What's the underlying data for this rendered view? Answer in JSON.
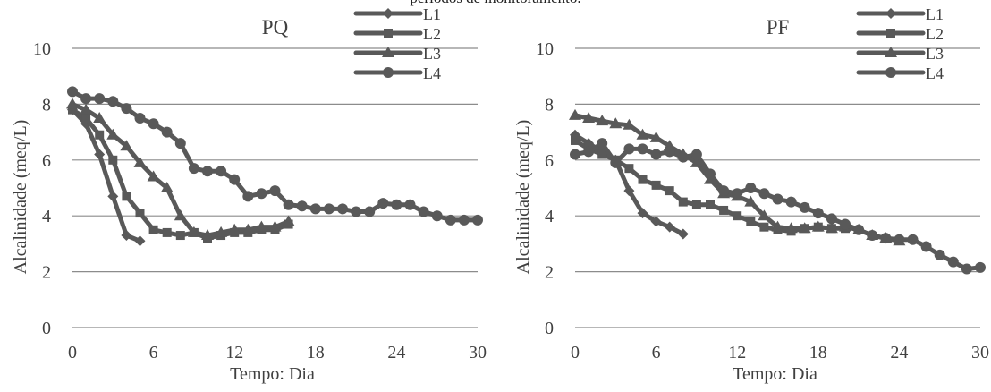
{
  "caption": "períodos de monitoramento.",
  "chart_data": [
    {
      "type": "line",
      "title": "PQ",
      "xlabel": "Tempo: Dia",
      "ylabel": "Alcalinidade (meq/L)",
      "xlim": [
        0,
        30
      ],
      "ylim": [
        0,
        10
      ],
      "xticks": [
        0,
        6,
        12,
        18,
        24,
        30
      ],
      "yticks": [
        0,
        2,
        4,
        6,
        8,
        10
      ],
      "grid": true,
      "legend": "top-right",
      "series": [
        {
          "name": "L1",
          "marker": "diamond",
          "x": [
            0,
            1,
            2,
            3,
            4,
            5
          ],
          "y": [
            7.8,
            7.3,
            6.2,
            4.7,
            3.3,
            3.1
          ]
        },
        {
          "name": "L2",
          "marker": "square",
          "x": [
            0,
            1,
            2,
            3,
            4,
            5,
            6,
            7,
            8,
            9,
            10,
            11,
            12,
            13,
            14,
            15,
            16
          ],
          "y": [
            7.8,
            7.5,
            6.9,
            6.0,
            4.7,
            4.1,
            3.5,
            3.4,
            3.3,
            3.4,
            3.2,
            3.3,
            3.4,
            3.4,
            3.5,
            3.5,
            3.7
          ]
        },
        {
          "name": "L3",
          "marker": "triangle",
          "x": [
            0,
            1,
            2,
            3,
            4,
            5,
            6,
            7,
            8,
            9,
            10,
            11,
            12,
            13,
            14,
            15,
            16
          ],
          "y": [
            8.0,
            7.8,
            7.5,
            6.9,
            6.5,
            5.9,
            5.4,
            5.0,
            4.0,
            3.4,
            3.3,
            3.4,
            3.5,
            3.5,
            3.6,
            3.6,
            3.8
          ]
        },
        {
          "name": "L4",
          "marker": "circle",
          "x": [
            0,
            1,
            2,
            3,
            4,
            5,
            6,
            7,
            8,
            9,
            10,
            11,
            12,
            13,
            14,
            15,
            16,
            17,
            18,
            19,
            20,
            21,
            22,
            23,
            24,
            25,
            26,
            27,
            28,
            29,
            30
          ],
          "y": [
            8.45,
            8.2,
            8.2,
            8.1,
            7.85,
            7.5,
            7.3,
            7.0,
            6.6,
            5.7,
            5.6,
            5.6,
            5.3,
            4.7,
            4.8,
            4.9,
            4.4,
            4.35,
            4.25,
            4.25,
            4.25,
            4.15,
            4.15,
            4.45,
            4.4,
            4.4,
            4.15,
            4.0,
            3.85,
            3.85,
            3.85
          ]
        }
      ]
    },
    {
      "type": "line",
      "title": "PF",
      "xlabel": "Tempo: Dia",
      "ylabel": "Alcalinidade (meq/L)",
      "xlim": [
        0,
        30
      ],
      "ylim": [
        0,
        10
      ],
      "xticks": [
        0,
        6,
        12,
        18,
        24,
        30
      ],
      "yticks": [
        0,
        2,
        4,
        6,
        8,
        10
      ],
      "grid": true,
      "legend": "top-right",
      "series": [
        {
          "name": "L1",
          "marker": "diamond",
          "x": [
            0,
            1,
            2,
            3,
            4,
            5,
            6,
            7,
            8
          ],
          "y": [
            6.9,
            6.6,
            6.3,
            6.0,
            4.9,
            4.1,
            3.8,
            3.6,
            3.35
          ]
        },
        {
          "name": "L2",
          "marker": "square",
          "x": [
            0,
            1,
            2,
            3,
            4,
            5,
            6,
            7,
            8,
            9,
            10,
            11,
            12,
            13,
            14,
            15,
            16,
            17,
            18,
            19,
            20
          ],
          "y": [
            6.7,
            6.4,
            6.2,
            6.0,
            5.7,
            5.3,
            5.1,
            4.9,
            4.5,
            4.4,
            4.4,
            4.2,
            4.0,
            3.8,
            3.6,
            3.5,
            3.45,
            3.55,
            3.6,
            3.55,
            3.55
          ]
        },
        {
          "name": "L3",
          "marker": "triangle",
          "x": [
            0,
            1,
            2,
            3,
            4,
            5,
            6,
            7,
            8,
            9,
            10,
            11,
            12,
            13,
            14,
            15,
            16,
            17,
            18,
            19,
            20,
            21,
            22,
            23,
            24
          ],
          "y": [
            7.6,
            7.5,
            7.4,
            7.3,
            7.25,
            6.9,
            6.8,
            6.5,
            6.2,
            5.9,
            5.3,
            4.8,
            4.7,
            4.5,
            4.0,
            3.6,
            3.55,
            3.55,
            3.6,
            3.55,
            3.6,
            3.5,
            3.3,
            3.2,
            3.1
          ]
        },
        {
          "name": "L4",
          "marker": "circle",
          "x": [
            0,
            1,
            2,
            3,
            4,
            5,
            6,
            7,
            8,
            9,
            10,
            11,
            12,
            13,
            14,
            15,
            16,
            17,
            18,
            19,
            20,
            21,
            22,
            23,
            24,
            25,
            26,
            27,
            28,
            29,
            30
          ],
          "y": [
            6.2,
            6.3,
            6.6,
            5.9,
            6.4,
            6.4,
            6.2,
            6.3,
            6.1,
            6.2,
            5.5,
            4.9,
            4.8,
            5.0,
            4.8,
            4.6,
            4.5,
            4.3,
            4.1,
            3.9,
            3.7,
            3.5,
            3.3,
            3.2,
            3.15,
            3.15,
            2.9,
            2.6,
            2.35,
            2.1,
            2.15
          ]
        }
      ]
    }
  ]
}
